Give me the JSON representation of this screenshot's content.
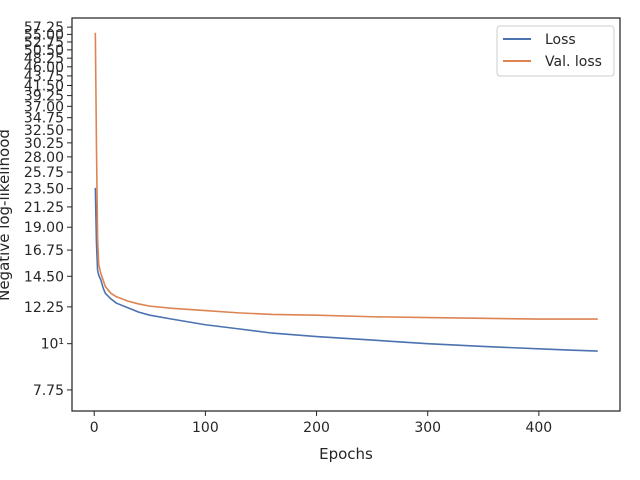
{
  "chart_data": {
    "type": "line",
    "title": "",
    "xlabel": "Epochs",
    "ylabel": "Negative log-likelihood",
    "xlim": [
      -20,
      473
    ],
    "ylim": [
      6.9,
      60.2
    ],
    "yscale": "log",
    "grid": false,
    "legend_position": "top-right",
    "x_ticks": [
      0,
      100,
      200,
      300,
      400
    ],
    "x_tick_labels": [
      "0",
      "100",
      "200",
      "300",
      "400"
    ],
    "y_ticks": [
      7.75,
      10,
      12.25,
      14.5,
      16.75,
      19.0,
      21.25,
      23.5,
      25.75,
      28.0,
      30.25,
      32.5,
      34.75,
      37.0,
      39.25,
      41.5,
      43.75,
      46.0,
      48.25,
      50.5,
      52.75,
      55.0,
      57.25
    ],
    "y_tick_labels": [
      "7.75",
      "10¹",
      "12.25",
      "14.50",
      "16.75",
      "19.00",
      "21.25",
      "23.50",
      "25.75",
      "28.00",
      "30.25",
      "32.50",
      "34.75",
      "37.00",
      "39.25",
      "41.50",
      "43.75",
      "46.00",
      "48.25",
      "50.50",
      "52.75",
      "55.00",
      "57.25"
    ],
    "series": [
      {
        "name": "Loss",
        "color": "#4c72b0",
        "x": [
          1,
          2,
          3,
          4,
          6,
          8,
          10,
          15,
          20,
          30,
          40,
          50,
          70,
          100,
          130,
          160,
          200,
          250,
          300,
          350,
          400,
          430,
          453
        ],
        "y": [
          23.6,
          17.5,
          15.0,
          14.6,
          14.2,
          13.6,
          13.2,
          12.8,
          12.5,
          12.2,
          11.9,
          11.7,
          11.45,
          11.1,
          10.85,
          10.6,
          10.4,
          10.2,
          10.0,
          9.85,
          9.72,
          9.65,
          9.6
        ]
      },
      {
        "name": "Val. loss",
        "color": "#dd8452",
        "x": [
          1,
          2,
          3,
          4,
          6,
          8,
          10,
          15,
          20,
          30,
          40,
          50,
          70,
          100,
          130,
          160,
          200,
          250,
          300,
          350,
          400,
          430,
          453
        ],
        "y": [
          55.5,
          30.0,
          18.0,
          15.5,
          14.7,
          14.2,
          13.7,
          13.2,
          12.95,
          12.65,
          12.45,
          12.3,
          12.15,
          12.0,
          11.85,
          11.75,
          11.7,
          11.6,
          11.55,
          11.5,
          11.45,
          11.45,
          11.45
        ]
      }
    ]
  }
}
